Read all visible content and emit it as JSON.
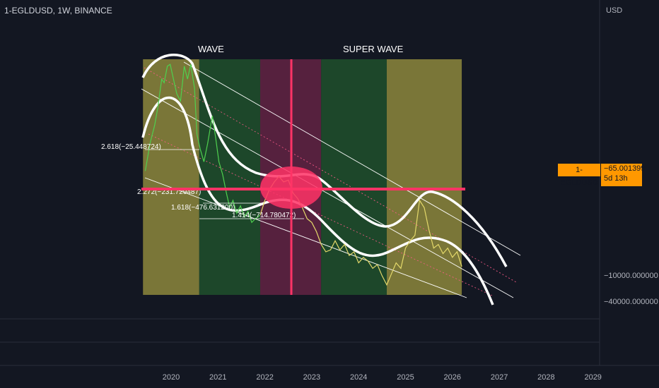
{
  "header": {
    "symbol_title": "1-EGLDUSD, 1W, BINANCE",
    "currency": "USD"
  },
  "price_label": {
    "symbol": "1-EGLDUSD",
    "value": "−65.001399",
    "countdown": "5d 13h"
  },
  "annotations": {
    "wave": "WAVE",
    "super_wave": "SUPER WAVE"
  },
  "fib_labels": [
    {
      "text": "2.618(−25.448724)"
    },
    {
      "text": "2.272(−231.729487)"
    },
    {
      "text": "1.618(−476.631200)"
    },
    {
      "text": "1.414(−714.780472)"
    }
  ],
  "chart_data": {
    "type": "line",
    "title": "1-EGLDUSD, 1W, BINANCE",
    "x_ticks": [
      "2020",
      "2021",
      "2022",
      "2023",
      "2024",
      "2025",
      "2026",
      "2027",
      "2028",
      "2029"
    ],
    "y_ticks": [
      "−10000.000000",
      "−40000.000000"
    ],
    "last_value": -65.001399,
    "grid": false,
    "zones": [
      {
        "name": "zone-1",
        "from": 2019.4,
        "to": 2020.6,
        "color": "#7f7b3a"
      },
      {
        "name": "zone-2",
        "from": 2020.6,
        "to": 2021.9,
        "color": "#1e4a2b"
      },
      {
        "name": "zone-3",
        "from": 2021.9,
        "to": 2023.2,
        "color": "#5a2240"
      },
      {
        "name": "zone-4",
        "from": 2023.2,
        "to": 2024.6,
        "color": "#1e4a2b"
      },
      {
        "name": "zone-5",
        "from": 2024.6,
        "to": 2026.2,
        "color": "#7f7b3a"
      }
    ],
    "series": [
      {
        "color": "#4fd04f",
        "points": [
          [
            2019.45,
            0.6
          ],
          [
            2019.55,
            0.45
          ],
          [
            2019.65,
            0.35
          ],
          [
            2019.72,
            0.25
          ],
          [
            2019.8,
            0.1
          ],
          [
            2019.85,
            0.12
          ],
          [
            2019.92,
            0.03
          ],
          [
            2019.98,
            0.02
          ],
          [
            2020.05,
            0.1
          ],
          [
            2020.12,
            0.18
          ],
          [
            2020.2,
            0.22
          ],
          [
            2020.28,
            0.03
          ],
          [
            2020.35,
            0.1
          ],
          [
            2020.42,
            0.02
          ],
          [
            2020.5,
            0.15
          ],
          [
            2020.55,
            0.4
          ],
          [
            2020.62,
            0.48
          ],
          [
            2020.7,
            0.55
          ],
          [
            2020.78,
            0.45
          ],
          [
            2020.88,
            0.3
          ],
          [
            2020.95,
            0.42
          ],
          [
            2021.02,
            0.55
          ],
          [
            2021.1,
            0.62
          ],
          [
            2021.18,
            0.72
          ],
          [
            2021.25,
            0.8
          ],
          [
            2021.32,
            0.76
          ],
          [
            2021.4,
            0.83
          ],
          [
            2021.48,
            0.79
          ],
          [
            2021.56,
            0.85
          ],
          [
            2021.64,
            0.82
          ],
          [
            2021.72,
            0.88
          ],
          [
            2021.8,
            0.86
          ],
          [
            2021.9,
            0.84
          ]
        ]
      },
      {
        "color": "#e3d86a",
        "points": [
          [
            2021.9,
            0.84
          ],
          [
            2022.0,
            0.76
          ],
          [
            2022.1,
            0.7
          ],
          [
            2022.2,
            0.66
          ],
          [
            2022.3,
            0.63
          ],
          [
            2022.4,
            0.66
          ],
          [
            2022.5,
            0.65
          ],
          [
            2022.6,
            0.72
          ],
          [
            2022.7,
            0.75
          ],
          [
            2022.8,
            0.8
          ],
          [
            2022.9,
            0.86
          ],
          [
            2023.0,
            0.88
          ],
          [
            2023.1,
            0.93
          ],
          [
            2023.2,
            1.0
          ],
          [
            2023.3,
            1.04
          ],
          [
            2023.4,
            1.03
          ],
          [
            2023.5,
            0.98
          ],
          [
            2023.6,
            1.03
          ],
          [
            2023.7,
            1.0
          ],
          [
            2023.8,
            1.06
          ],
          [
            2023.9,
            1.04
          ],
          [
            2024.0,
            1.1
          ],
          [
            2024.1,
            1.07
          ],
          [
            2024.2,
            1.09
          ],
          [
            2024.3,
            1.13
          ],
          [
            2024.4,
            1.11
          ],
          [
            2024.5,
            1.17
          ],
          [
            2024.6,
            1.22
          ],
          [
            2024.7,
            1.16
          ],
          [
            2024.8,
            1.1
          ],
          [
            2024.9,
            1.13
          ],
          [
            2025.0,
            1.02
          ],
          [
            2025.1,
            0.98
          ],
          [
            2025.2,
            0.95
          ],
          [
            2025.3,
            0.76
          ],
          [
            2025.4,
            0.8
          ],
          [
            2025.5,
            0.92
          ],
          [
            2025.6,
            1.02
          ],
          [
            2025.7,
            1.0
          ],
          [
            2025.8,
            1.05
          ],
          [
            2025.9,
            1.02
          ],
          [
            2026.0,
            1.07
          ],
          [
            2026.1,
            1.04
          ],
          [
            2026.2,
            1.12
          ]
        ]
      }
    ]
  }
}
